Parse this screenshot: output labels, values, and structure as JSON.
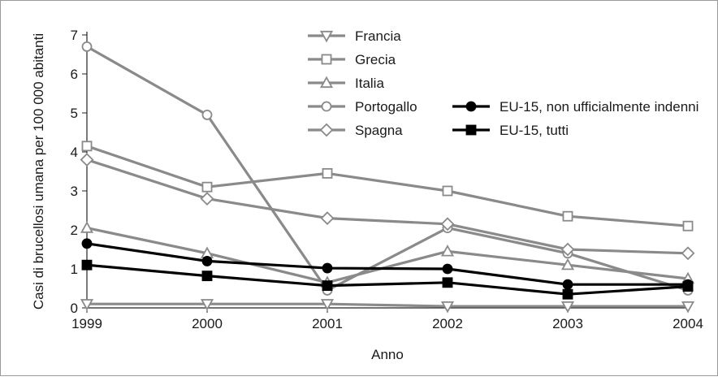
{
  "chart_data": {
    "type": "line",
    "title": "",
    "xlabel": "Anno",
    "ylabel": "Casi di brucellosi umana per 100 000 abitanti",
    "x": [
      "1999",
      "2000",
      "2001",
      "2002",
      "2003",
      "2004"
    ],
    "ylim": [
      0,
      7
    ],
    "yticks": [
      "0",
      "1",
      "2",
      "3",
      "4",
      "5",
      "6",
      "7"
    ],
    "grid": false,
    "legend_position": "top-center",
    "series": [
      {
        "name": "Francia",
        "marker": "triangle-down",
        "filled": false,
        "color": "#8a8a8a",
        "values": [
          0.1,
          0.1,
          0.1,
          0.04,
          0.04,
          0.04
        ]
      },
      {
        "name": "Grecia",
        "marker": "square",
        "filled": false,
        "color": "#8a8a8a",
        "values": [
          4.15,
          3.1,
          3.45,
          3.0,
          2.35,
          2.1
        ]
      },
      {
        "name": "Italia",
        "marker": "triangle-up",
        "filled": false,
        "color": "#8a8a8a",
        "values": [
          2.05,
          1.4,
          0.65,
          1.45,
          1.1,
          0.75
        ]
      },
      {
        "name": "Portogallo",
        "marker": "circle",
        "filled": false,
        "color": "#8a8a8a",
        "values": [
          6.7,
          4.95,
          0.45,
          2.05,
          1.4,
          0.45
        ]
      },
      {
        "name": "Spagna",
        "marker": "diamond",
        "filled": false,
        "color": "#8a8a8a",
        "values": [
          3.8,
          2.8,
          2.3,
          2.15,
          1.5,
          1.4
        ]
      },
      {
        "name": "EU-15, non ufficialmente indenni",
        "marker": "circle",
        "filled": true,
        "color": "#000000",
        "values": [
          1.65,
          1.2,
          1.02,
          1.0,
          0.6,
          0.6
        ]
      },
      {
        "name": "EU-15, tutti",
        "marker": "square",
        "filled": true,
        "color": "#000000",
        "values": [
          1.1,
          0.82,
          0.57,
          0.65,
          0.35,
          0.55
        ]
      }
    ]
  }
}
